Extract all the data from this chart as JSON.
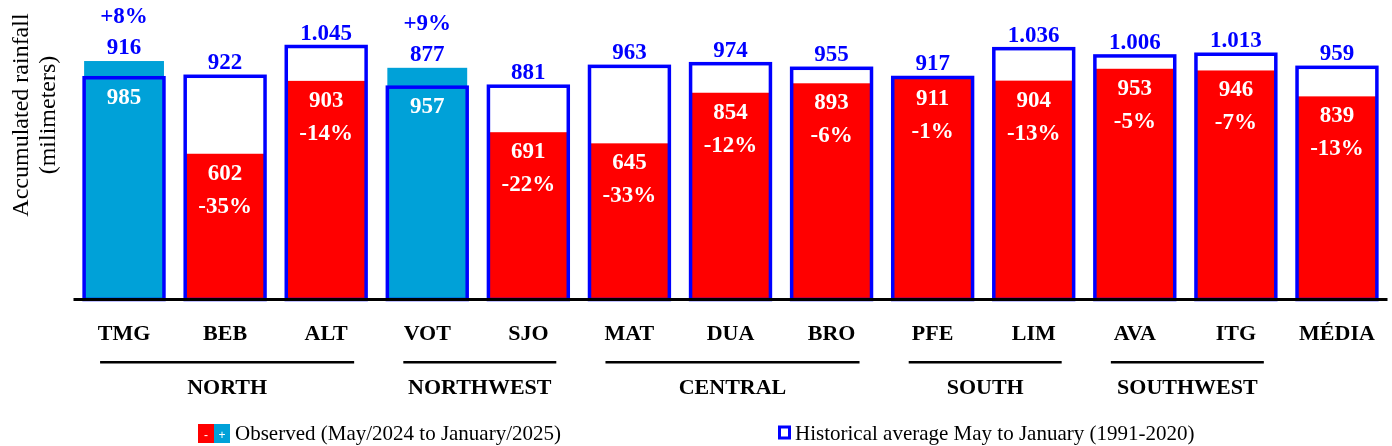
{
  "chart_data": {
    "type": "bar",
    "ylabel": "Accumulated rainfall (milimeters)",
    "categories": [
      "TMG",
      "BEB",
      "ALT",
      "VOT",
      "SJO",
      "MAT",
      "DUA",
      "BRO",
      "PFE",
      "LIM",
      "AVA",
      "ITG",
      "MÉDIA"
    ],
    "series": [
      {
        "name": "Observed (May/2024 to January/2025)",
        "colors": [
          "#00a1d8",
          "#ff0000",
          "#ff0000",
          "#00a1d8",
          "#ff0000",
          "#ff0000",
          "#ff0000",
          "#ff0000",
          "#ff0000",
          "#ff0000",
          "#ff0000",
          "#ff0000",
          "#ff0000"
        ],
        "values": [
          985,
          602,
          903,
          957,
          691,
          645,
          854,
          893,
          911,
          904,
          953,
          946,
          839
        ],
        "value_labels": [
          "985",
          "602",
          "903",
          "957",
          "691",
          "645",
          "854",
          "893",
          "911",
          "904",
          "953",
          "946",
          "839"
        ]
      },
      {
        "name": "Historical average May to January (1991-2020)",
        "color": "#0000ff",
        "values": [
          916,
          922,
          1045,
          877,
          881,
          963,
          974,
          955,
          917,
          1036,
          1006,
          1013,
          959
        ],
        "value_labels": [
          "916",
          "922",
          "1.045",
          "877",
          "881",
          "963",
          "974",
          "955",
          "917",
          "1.036",
          "1.006",
          "1.013",
          "959"
        ]
      }
    ],
    "annotations": [
      {
        "text": "+8%",
        "x": "TMG",
        "y": 985
      },
      {
        "text": "-35%",
        "x": "BEB",
        "y": 602
      },
      {
        "text": "-14%",
        "x": "ALT",
        "y": 903
      },
      {
        "text": "+9%",
        "x": "VOT",
        "y": 957
      },
      {
        "text": "-22%",
        "x": "SJO",
        "y": 691
      },
      {
        "text": "-33%",
        "x": "MAT",
        "y": 645
      },
      {
        "text": "-12%",
        "x": "DUA",
        "y": 854
      },
      {
        "text": "-6%",
        "x": "BRO",
        "y": 893
      },
      {
        "text": "-1%",
        "x": "PFE",
        "y": 911
      },
      {
        "text": "-13%",
        "x": "LIM",
        "y": 904
      },
      {
        "text": "-5%",
        "x": "AVA",
        "y": 953
      },
      {
        "text": "-7%",
        "x": "ITG",
        "y": 946
      },
      {
        "text": "-13%",
        "x": "MÉDIA",
        "y": 839
      },
      "NORTH",
      "NORTHWEST",
      "CENTRAL",
      "SOUTH",
      "SOUTHWEST",
      "-",
      "+"
    ],
    "legend": "bottom",
    "tick_labels": "x"
  }
}
